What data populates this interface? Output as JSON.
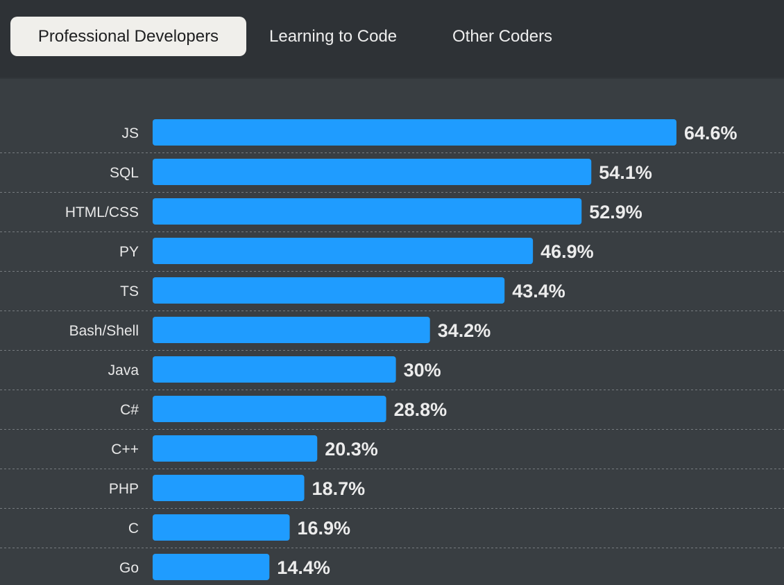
{
  "tabs": [
    {
      "label": "Professional Developers",
      "active": true
    },
    {
      "label": "Learning to Code",
      "active": false
    },
    {
      "label": "Other Coders",
      "active": false
    }
  ],
  "colors": {
    "background": "#393e42",
    "tabbar": "#2e3236",
    "bar": "#1f9cff",
    "active_tab": "#f0efeb"
  },
  "chart_data": {
    "type": "bar",
    "orientation": "horizontal",
    "categories": [
      "JS",
      "SQL",
      "HTML/CSS",
      "PY",
      "TS",
      "Bash/Shell",
      "Java",
      "C#",
      "C++",
      "PHP",
      "C",
      "Go"
    ],
    "values": [
      64.6,
      54.1,
      52.9,
      46.9,
      43.4,
      34.2,
      30,
      28.8,
      20.3,
      18.7,
      16.9,
      14.4
    ],
    "value_labels": [
      "64.6%",
      "54.1%",
      "52.9%",
      "46.9%",
      "43.4%",
      "34.2%",
      "30%",
      "28.8%",
      "20.3%",
      "18.7%",
      "16.9%",
      "14.4%"
    ],
    "xlim": [
      0,
      64.6
    ],
    "title": "",
    "xlabel": "",
    "ylabel": "",
    "grid": false
  }
}
